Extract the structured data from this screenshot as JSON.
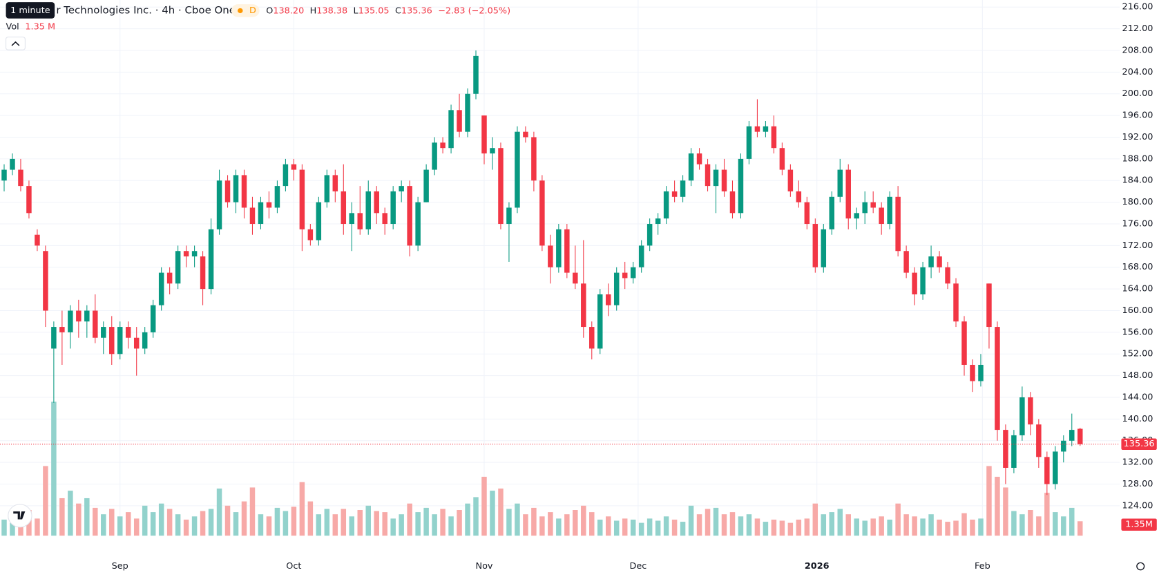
{
  "chart_data": {
    "type": "candlestick",
    "tooltip": "1 minute",
    "title": "r Technologies Inc. · 4h · Cboe One",
    "interval": "D",
    "ohlc_labels": [
      "O",
      "H",
      "L",
      "C"
    ],
    "ohlc_values": [
      "138.20",
      "138.38",
      "135.05",
      "135.36"
    ],
    "change": "−2.83 (−2.05%)",
    "volume_name": "Vol",
    "volume_value": "1.35 M",
    "volume_last_label": "1.35M",
    "last_price": 135.36,
    "up_color": "#089981",
    "down_color": "#f23645",
    "volume_up_color": "#92d2cc",
    "volume_down_color": "#f7a9a7",
    "grid": true,
    "xlim": [
      -0.5,
      134.8
    ],
    "xticks": [
      {
        "value": 14,
        "label": "Sep"
      },
      {
        "value": 35,
        "label": "Oct"
      },
      {
        "value": 58,
        "label": "Nov"
      },
      {
        "value": 76.6,
        "label": "Dec"
      },
      {
        "value": 98.2,
        "label": "2026"
      },
      {
        "value": 118.2,
        "label": "Feb"
      }
    ],
    "ylim": [
      118.48,
      217.31
    ],
    "yticks": [
      {
        "value": 124,
        "label": "124.00"
      },
      {
        "value": 128,
        "label": "128.00"
      },
      {
        "value": 132,
        "label": "132.00"
      },
      {
        "value": 136,
        "label": "136.00"
      },
      {
        "value": 140,
        "label": "140.00"
      },
      {
        "value": 144,
        "label": "144.00"
      },
      {
        "value": 148,
        "label": "148.00"
      },
      {
        "value": 152,
        "label": "152.00"
      },
      {
        "value": 156,
        "label": "156.00"
      },
      {
        "value": 160,
        "label": "160.00"
      },
      {
        "value": 164,
        "label": "164.00"
      },
      {
        "value": 168,
        "label": "168.00"
      },
      {
        "value": 172,
        "label": "172.00"
      },
      {
        "value": 176,
        "label": "176.00"
      },
      {
        "value": 180,
        "label": "180.00"
      },
      {
        "value": 184,
        "label": "184.00"
      },
      {
        "value": 188,
        "label": "188.00"
      },
      {
        "value": 192,
        "label": "192.00"
      },
      {
        "value": 196,
        "label": "196.00"
      },
      {
        "value": 200,
        "label": "200.00"
      },
      {
        "value": 204,
        "label": "204.00"
      },
      {
        "value": 208,
        "label": "208.00"
      },
      {
        "value": 212,
        "label": "212.00"
      },
      {
        "value": 216,
        "label": "216.00"
      }
    ],
    "volume_lim": [
      0,
      50
    ],
    "open": [
      184,
      186,
      186,
      183,
      174,
      171,
      153,
      157,
      156,
      160,
      158,
      160,
      155,
      157,
      152,
      157,
      155,
      153,
      156,
      161,
      167,
      165,
      171,
      170,
      170,
      164,
      175,
      184,
      180,
      185,
      179,
      176,
      180,
      179,
      183,
      187,
      186,
      175,
      173,
      180,
      185,
      182,
      176,
      178,
      175,
      182,
      178,
      176,
      182,
      183,
      172,
      180,
      186,
      191,
      190,
      197,
      193,
      200,
      196,
      189,
      190,
      176,
      179,
      193,
      192,
      184,
      172,
      168,
      175,
      167,
      165,
      157,
      153,
      163,
      161,
      167,
      166,
      168,
      172,
      176,
      177,
      182,
      181,
      184,
      189,
      187,
      183,
      186,
      182,
      178,
      188,
      194,
      193,
      194,
      190,
      186,
      182,
      180,
      176,
      168,
      175,
      181,
      186,
      177,
      178,
      180,
      179,
      176,
      181,
      171,
      167,
      163,
      168,
      170,
      168,
      165,
      158,
      150,
      147,
      165,
      157,
      138,
      131,
      137,
      144,
      139,
      133,
      128,
      134,
      136,
      138.2
    ],
    "high": [
      187,
      189,
      188,
      184,
      175,
      172,
      158,
      160,
      161,
      162,
      161,
      163,
      158,
      159,
      158,
      158,
      157,
      157,
      162,
      168,
      168,
      172,
      172,
      172,
      171,
      177,
      186,
      185,
      186,
      186,
      181,
      181,
      182,
      184,
      188,
      188,
      187,
      176,
      181,
      186,
      186,
      187,
      180,
      183,
      184,
      183,
      179,
      183,
      184,
      184,
      181,
      187,
      192,
      192,
      198,
      200,
      201,
      208,
      196,
      192,
      191,
      180,
      194,
      194,
      193,
      185,
      174,
      176,
      176,
      172,
      173,
      158,
      164,
      165,
      168,
      169,
      169,
      173,
      177,
      178,
      183,
      184,
      185,
      190,
      190,
      188,
      187,
      188,
      184,
      189,
      195,
      199,
      195,
      196,
      191,
      187,
      184,
      181,
      177,
      176,
      182,
      188,
      187,
      179,
      182,
      182,
      180,
      182,
      183,
      172,
      168,
      169,
      172,
      171,
      169,
      166,
      159,
      151,
      152,
      165,
      158,
      139,
      138,
      146,
      145,
      140,
      134,
      135,
      137,
      141,
      138.38
    ],
    "low": [
      182,
      185,
      182,
      177,
      171,
      157,
      143,
      150,
      153,
      155,
      155,
      154,
      152,
      150,
      151,
      153,
      148,
      152,
      155,
      160,
      163,
      164,
      168,
      168,
      161,
      163,
      174,
      179,
      178,
      177,
      174,
      175,
      177,
      178,
      182,
      184,
      171,
      172,
      172,
      179,
      180,
      174,
      171,
      174,
      174,
      176,
      174,
      175,
      180,
      170,
      171,
      180,
      185,
      189,
      189,
      192,
      192,
      199,
      187,
      186,
      175,
      169,
      178,
      191,
      182,
      171,
      165,
      167,
      166,
      164,
      155,
      151,
      152,
      159,
      160,
      164,
      165,
      167,
      171,
      174,
      176,
      180,
      180,
      183,
      186,
      182,
      178,
      181,
      177,
      177,
      187,
      192,
      192,
      189,
      185,
      181,
      179,
      175,
      167,
      167,
      174,
      180,
      175,
      175,
      176,
      178,
      174,
      175,
      170,
      166,
      161,
      162,
      166,
      167,
      164,
      157,
      148,
      145,
      146,
      153,
      136,
      128,
      130,
      136,
      137,
      131,
      126,
      127,
      132,
      135,
      135.05
    ],
    "close": [
      186,
      188,
      183,
      178,
      172,
      160,
      157,
      156,
      160,
      158,
      160,
      155,
      157,
      152,
      157,
      155,
      153,
      156,
      161,
      167,
      165,
      171,
      170,
      171,
      164,
      175,
      184,
      180,
      185,
      179,
      176,
      180,
      179,
      183,
      187,
      186,
      175,
      173,
      180,
      185,
      182,
      176,
      178,
      175,
      182,
      178,
      176,
      182,
      183,
      172,
      180,
      186,
      191,
      190,
      197,
      193,
      200,
      207,
      189,
      190,
      176,
      179,
      193,
      192,
      184,
      172,
      168,
      175,
      167,
      165,
      157,
      153,
      163,
      161,
      167,
      166,
      168,
      172,
      176,
      177,
      182,
      181,
      184,
      189,
      187,
      183,
      186,
      182,
      178,
      188,
      194,
      193,
      194,
      190,
      186,
      182,
      180,
      176,
      168,
      175,
      181,
      186,
      177,
      178,
      180,
      179,
      176,
      181,
      171,
      167,
      163,
      168,
      170,
      168,
      165,
      158,
      150,
      147,
      150,
      157,
      138,
      131,
      137,
      144,
      139,
      133,
      128,
      134,
      136,
      138,
      135.36
    ],
    "volume": [
      1.5,
      1.2,
      2.0,
      2.4,
      1.6,
      6.5,
      12.5,
      3.5,
      4.2,
      3.0,
      3.5,
      2.6,
      2.0,
      2.5,
      1.8,
      2.2,
      1.6,
      2.8,
      2.2,
      3.0,
      2.5,
      2.0,
      1.5,
      1.8,
      2.3,
      2.5,
      4.4,
      2.8,
      2.2,
      3.2,
      4.5,
      2.0,
      1.8,
      2.6,
      2.3,
      2.7,
      5.0,
      3.2,
      2.0,
      2.5,
      2.0,
      2.5,
      1.8,
      2.4,
      2.8,
      2.3,
      2.2,
      1.6,
      2.0,
      3.0,
      2.2,
      2.6,
      2.0,
      2.5,
      1.8,
      2.4,
      3.0,
      3.6,
      5.5,
      4.2,
      4.4,
      2.5,
      3.0,
      2.0,
      2.6,
      1.8,
      2.2,
      1.6,
      2.0,
      2.4,
      2.8,
      2.2,
      1.5,
      1.8,
      1.4,
      1.6,
      1.5,
      1.2,
      1.6,
      1.4,
      1.8,
      1.5,
      1.3,
      2.8,
      2.0,
      2.5,
      2.6,
      2.0,
      2.2,
      1.8,
      2.0,
      1.6,
      1.3,
      1.5,
      1.4,
      1.2,
      1.5,
      1.6,
      3.0,
      2.0,
      2.2,
      2.5,
      2.0,
      1.6,
      1.4,
      1.6,
      1.8,
      1.5,
      3.0,
      2.0,
      1.8,
      1.6,
      2.0,
      1.5,
      1.3,
      1.4,
      2.1,
      1.5,
      1.6,
      6.5,
      5.5,
      4.5,
      2.3,
      2.0,
      2.4,
      1.8,
      4.0,
      2.2,
      1.8,
      2.6,
      1.35
    ]
  }
}
